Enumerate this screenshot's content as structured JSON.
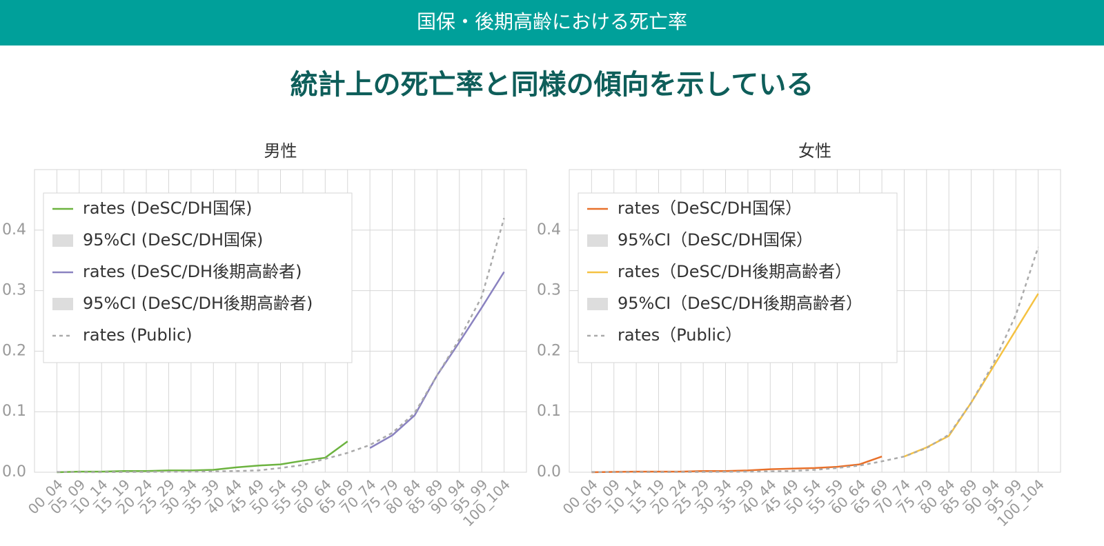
{
  "header": {
    "title": "国保・後期高齢における死亡率",
    "subtitle": "統計上の死亡率と同様の傾向を示している"
  },
  "chart_data": [
    {
      "type": "line",
      "title": "男性",
      "categories": [
        "00_04",
        "05_09",
        "10_14",
        "15_19",
        "20_24",
        "25_29",
        "30_34",
        "35_39",
        "40_44",
        "45_49",
        "50_54",
        "55_59",
        "60_64",
        "65_69",
        "70_74",
        "75_79",
        "80_84",
        "85_89",
        "90_94",
        "95_99",
        "100_104"
      ],
      "ylim": [
        0,
        0.5
      ],
      "yticks": [
        {
          "value": 0,
          "label": "0.0"
        },
        0.1,
        0.2,
        0.3,
        0.4
      ],
      "grid": true,
      "legend": "upper left",
      "series": [
        {
          "name": "rates (DeSC/DH国保)",
          "color": "#6cb33f",
          "style": "solid",
          "values": [
            0.0,
            0.001,
            0.001,
            0.002,
            0.002,
            0.003,
            0.003,
            0.004,
            0.008,
            0.011,
            0.013,
            0.019,
            0.024,
            0.051,
            null,
            null,
            null,
            null,
            null,
            null,
            null
          ]
        },
        {
          "name": "95%CI (DeSC/DH国保)",
          "color": "#dddddd",
          "style": "band",
          "values": [
            null,
            null,
            null,
            null,
            null,
            null,
            null,
            null,
            null,
            null,
            null,
            null,
            null,
            null,
            null,
            null,
            null,
            null,
            null,
            null,
            null
          ]
        },
        {
          "name": "rates (DeSC/DH後期高齢者)",
          "color": "#8a82c0",
          "style": "solid",
          "values": [
            null,
            null,
            null,
            null,
            null,
            null,
            null,
            null,
            null,
            null,
            null,
            null,
            null,
            null,
            0.04,
            0.061,
            0.094,
            0.16,
            0.215,
            0.272,
            0.331
          ]
        },
        {
          "name": "95%CI (DeSC/DH後期高齢者)",
          "color": "#dddddd",
          "style": "band",
          "values": [
            null,
            null,
            null,
            null,
            null,
            null,
            null,
            null,
            null,
            null,
            null,
            null,
            null,
            null,
            null,
            null,
            null,
            null,
            null,
            null,
            null
          ]
        },
        {
          "name": "rates (Public)",
          "color": "#aaaaaa",
          "style": "dashed",
          "values": [
            0.0005,
            0.0002,
            0.0002,
            0.0004,
            0.0006,
            0.0008,
            0.001,
            0.0015,
            0.002,
            0.003,
            0.007,
            0.012,
            0.022,
            0.032,
            0.045,
            0.065,
            0.098,
            0.16,
            0.22,
            0.29,
            0.42
          ]
        }
      ]
    },
    {
      "type": "line",
      "title": "女性",
      "categories": [
        "00_04",
        "05_09",
        "10_14",
        "15_19",
        "20_24",
        "25_29",
        "30_34",
        "35_39",
        "40_44",
        "45_49",
        "50_54",
        "55_59",
        "60_64",
        "65_69",
        "70_74",
        "75_79",
        "80_84",
        "85_89",
        "90_94",
        "95_99",
        "100_104"
      ],
      "ylim": [
        0,
        0.5
      ],
      "yticks": [
        {
          "value": 0,
          "label": "0.0"
        },
        0.1,
        0.2,
        0.3,
        0.4
      ],
      "grid": true,
      "legend": "upper left",
      "series": [
        {
          "name": "rates（DeSC/DH国保）",
          "color": "#e8702a",
          "style": "solid",
          "values": [
            0.0,
            0.0005,
            0.001,
            0.001,
            0.001,
            0.002,
            0.002,
            0.003,
            0.005,
            0.006,
            0.007,
            0.009,
            0.013,
            0.026,
            null,
            null,
            null,
            null,
            null,
            null,
            null
          ]
        },
        {
          "name": "95%CI（DeSC/DH国保）",
          "color": "#dddddd",
          "style": "band",
          "values": [
            null,
            null,
            null,
            null,
            null,
            null,
            null,
            null,
            null,
            null,
            null,
            null,
            null,
            null,
            null,
            null,
            null,
            null,
            null,
            null,
            null
          ]
        },
        {
          "name": "rates（DeSC/DH後期高齢者）",
          "color": "#f5c242",
          "style": "solid",
          "values": [
            null,
            null,
            null,
            null,
            null,
            null,
            null,
            null,
            null,
            null,
            null,
            null,
            null,
            null,
            0.026,
            0.041,
            0.06,
            0.115,
            0.175,
            0.235,
            0.295
          ]
        },
        {
          "name": "95%CI（DeSC/DH後期高齢者）",
          "color": "#dddddd",
          "style": "band",
          "values": [
            null,
            null,
            null,
            null,
            null,
            null,
            null,
            null,
            null,
            null,
            null,
            null,
            null,
            null,
            null,
            null,
            null,
            null,
            null,
            null,
            null
          ]
        },
        {
          "name": "rates（Public）",
          "color": "#aaaaaa",
          "style": "dashed",
          "values": [
            0.0004,
            0.0002,
            0.0002,
            0.0003,
            0.0004,
            0.0005,
            0.0007,
            0.001,
            0.0015,
            0.002,
            0.004,
            0.007,
            0.011,
            0.018,
            0.026,
            0.04,
            0.062,
            0.115,
            0.18,
            0.26,
            0.372
          ]
        }
      ]
    }
  ]
}
